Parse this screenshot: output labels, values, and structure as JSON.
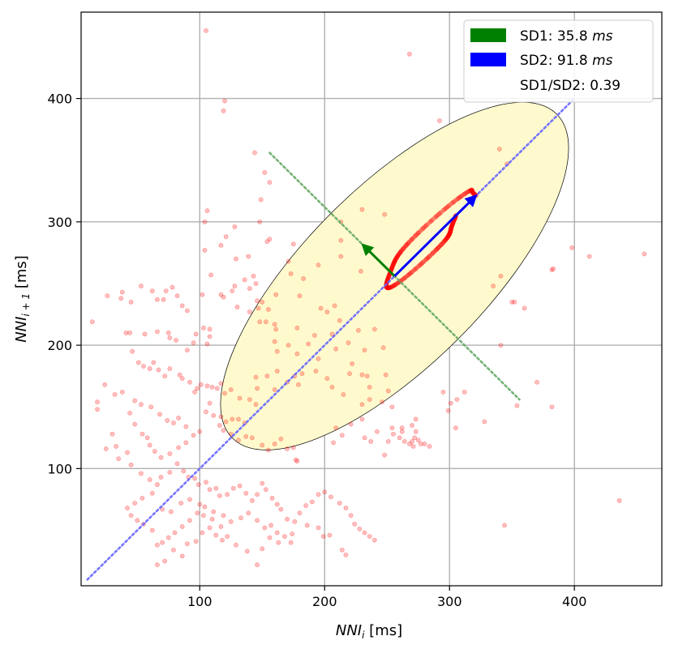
{
  "chart_data": {
    "type": "scatter",
    "title": "",
    "xlabel": {
      "base": "NNI",
      "sub": "i",
      "unit": " [ms]"
    },
    "ylabel": {
      "base": "NNI",
      "sub": "i + 1",
      "unit": " [ms]"
    },
    "xlim": [
      5,
      470
    ],
    "ylim": [
      5,
      470
    ],
    "xticks": [
      100,
      200,
      300,
      400
    ],
    "yticks": [
      100,
      200,
      300,
      400
    ],
    "xtick_labels": [
      "100",
      "200",
      "300",
      "400"
    ],
    "ytick_labels": [
      "100",
      "200",
      "300",
      "400"
    ],
    "grid": true,
    "legend_position": "top-right",
    "legend": [
      {
        "label": "SD1: 35.8 ",
        "unit": "ms",
        "color": "#008000",
        "swatch": true
      },
      {
        "label": "SD2: 91.8 ",
        "unit": "ms",
        "color": "#0000ff",
        "swatch": true
      },
      {
        "label": "SD1/SD2: 0.39",
        "unit": "",
        "color": "none",
        "swatch": false
      }
    ],
    "points_color": "#ff0000",
    "ellipse": {
      "center": [
        256,
        256
      ],
      "sd1": 35.8,
      "sd2": 91.8,
      "fill": "#fffacd",
      "edge": "#000000"
    },
    "identity_line": {
      "from": [
        10,
        10
      ],
      "to": [
        400,
        400
      ],
      "color": "#6666ff",
      "style": "dotted"
    },
    "perpendicular_line": {
      "from": [
        156,
        356
      ],
      "to": [
        356,
        156
      ],
      "color": "#66aa66",
      "style": "dotted"
    },
    "sd1_arrow": {
      "from": [
        256,
        256
      ],
      "to": [
        230.7,
        281.3
      ],
      "color": "#008000"
    },
    "sd2_arrow": {
      "from": [
        256,
        256
      ],
      "to": [
        320.9,
        320.9
      ],
      "color": "#0000ff"
    },
    "scatter_points": [
      [
        105,
        455
      ],
      [
        120,
        398
      ],
      [
        119,
        390
      ],
      [
        268,
        436
      ],
      [
        292,
        382
      ],
      [
        340,
        359
      ],
      [
        346,
        347
      ],
      [
        144,
        356
      ],
      [
        152,
        340
      ],
      [
        156,
        332
      ],
      [
        149,
        318
      ],
      [
        156,
        286
      ],
      [
        154,
        284
      ],
      [
        175,
        282
      ],
      [
        148,
        300
      ],
      [
        106,
        309
      ],
      [
        104,
        300
      ],
      [
        104,
        277
      ],
      [
        121,
        288
      ],
      [
        128,
        296
      ],
      [
        117,
        281
      ],
      [
        129,
        270
      ],
      [
        139,
        272
      ],
      [
        171,
        268
      ],
      [
        173,
        258
      ],
      [
        180,
        240
      ],
      [
        183,
        254
      ],
      [
        195,
        265
      ],
      [
        229,
        260
      ],
      [
        248,
        306
      ],
      [
        230,
        310
      ],
      [
        213,
        300
      ],
      [
        213,
        272
      ],
      [
        213,
        285
      ],
      [
        143,
        256
      ],
      [
        145,
        250
      ],
      [
        140,
        246
      ],
      [
        136,
        253
      ],
      [
        128,
        248
      ],
      [
        126,
        244
      ],
      [
        130,
        231
      ],
      [
        146,
        236
      ],
      [
        150,
        235
      ],
      [
        147,
        230
      ],
      [
        155,
        229
      ],
      [
        161,
        241
      ],
      [
        140,
        227
      ],
      [
        160,
        217
      ],
      [
        153,
        219
      ],
      [
        148,
        219
      ],
      [
        161,
        213
      ],
      [
        160,
        203
      ],
      [
        162,
        195
      ],
      [
        178,
        214
      ],
      [
        171,
        200
      ],
      [
        178,
        193
      ],
      [
        187,
        201
      ],
      [
        192,
        208
      ],
      [
        197,
        230
      ],
      [
        202,
        227
      ],
      [
        208,
        232
      ],
      [
        212,
        220
      ],
      [
        206,
        209
      ],
      [
        209,
        197
      ],
      [
        240,
        213
      ],
      [
        227,
        212
      ],
      [
        219,
        202
      ],
      [
        232,
        196
      ],
      [
        247,
        198
      ],
      [
        195,
        189
      ],
      [
        182,
        177
      ],
      [
        193,
        179
      ],
      [
        170,
        170
      ],
      [
        162,
        179
      ],
      [
        154,
        175
      ],
      [
        145,
        174
      ],
      [
        146,
        165
      ],
      [
        160,
        164
      ],
      [
        176,
        175
      ],
      [
        179,
        168
      ],
      [
        206,
        166
      ],
      [
        236,
        166
      ],
      [
        234,
        175
      ],
      [
        215,
        160
      ],
      [
        202,
        173
      ],
      [
        220,
        177
      ],
      [
        222,
        185
      ],
      [
        230,
        176
      ],
      [
        249,
        176
      ],
      [
        251,
        163
      ],
      [
        230,
        152
      ],
      [
        236,
        156
      ],
      [
        246,
        154
      ],
      [
        254,
        150
      ],
      [
        230,
        140
      ],
      [
        209,
        133
      ],
      [
        207,
        121
      ],
      [
        214,
        127
      ],
      [
        221,
        136
      ],
      [
        232,
        125
      ],
      [
        237,
        122
      ],
      [
        242,
        130
      ],
      [
        251,
        122
      ],
      [
        248,
        111
      ],
      [
        255,
        128
      ],
      [
        260,
        125
      ],
      [
        264,
        122
      ],
      [
        268,
        120
      ],
      [
        270,
        122
      ],
      [
        272,
        125
      ],
      [
        262,
        130
      ],
      [
        262,
        133
      ],
      [
        254,
        133
      ],
      [
        270,
        135
      ],
      [
        273,
        140
      ],
      [
        273,
        130
      ],
      [
        275,
        123
      ],
      [
        277,
        120
      ],
      [
        271,
        118
      ],
      [
        280,
        120
      ],
      [
        284,
        118
      ],
      [
        295,
        162
      ],
      [
        299,
        147
      ],
      [
        301,
        153
      ],
      [
        305,
        133
      ],
      [
        306,
        156
      ],
      [
        312,
        162
      ],
      [
        328,
        138
      ],
      [
        344,
        54
      ],
      [
        354,
        151
      ],
      [
        370,
        170
      ],
      [
        382,
        150
      ],
      [
        335,
        248
      ],
      [
        350,
        235
      ],
      [
        352,
        235
      ],
      [
        360,
        230
      ],
      [
        398,
        279
      ],
      [
        412,
        272
      ],
      [
        456,
        274
      ],
      [
        436,
        74
      ],
      [
        383,
        262
      ],
      [
        341,
        200
      ],
      [
        382,
        261
      ],
      [
        341,
        256
      ],
      [
        14,
        219
      ],
      [
        18,
        154
      ],
      [
        18,
        148
      ],
      [
        24,
        168
      ],
      [
        32,
        160
      ],
      [
        38,
        162
      ],
      [
        26,
        240
      ],
      [
        37,
        238
      ],
      [
        38,
        243
      ],
      [
        45,
        235
      ],
      [
        53,
        248
      ],
      [
        62,
        244
      ],
      [
        66,
        237
      ],
      [
        71,
        237
      ],
      [
        73,
        244
      ],
      [
        78,
        247
      ],
      [
        82,
        240
      ],
      [
        86,
        232
      ],
      [
        90,
        228
      ],
      [
        102,
        241
      ],
      [
        109,
        257
      ],
      [
        119,
        239
      ],
      [
        117,
        241
      ],
      [
        41,
        210
      ],
      [
        44,
        210
      ],
      [
        56,
        209
      ],
      [
        66,
        211
      ],
      [
        75,
        210
      ],
      [
        76,
        206
      ],
      [
        81,
        204
      ],
      [
        90,
        196
      ],
      [
        95,
        202
      ],
      [
        97,
        209
      ],
      [
        103,
        214
      ],
      [
        108,
        213
      ],
      [
        108,
        207
      ],
      [
        106,
        201
      ],
      [
        46,
        195
      ],
      [
        51,
        186
      ],
      [
        55,
        183
      ],
      [
        60,
        181
      ],
      [
        63,
        186
      ],
      [
        67,
        180
      ],
      [
        72,
        175
      ],
      [
        76,
        181
      ],
      [
        84,
        176
      ],
      [
        86,
        173
      ],
      [
        92,
        170
      ],
      [
        96,
        162
      ],
      [
        98,
        165
      ],
      [
        101,
        168
      ],
      [
        106,
        167
      ],
      [
        110,
        166
      ],
      [
        114,
        165
      ],
      [
        117,
        169
      ],
      [
        120,
        161
      ],
      [
        125,
        164
      ],
      [
        132,
        157
      ],
      [
        140,
        156
      ],
      [
        145,
        152
      ],
      [
        108,
        153
      ],
      [
        105,
        146
      ],
      [
        111,
        143
      ],
      [
        117,
        142
      ],
      [
        121,
        138
      ],
      [
        126,
        140
      ],
      [
        131,
        140
      ],
      [
        136,
        137
      ],
      [
        116,
        135
      ],
      [
        119,
        131
      ],
      [
        125,
        128
      ],
      [
        131,
        123
      ],
      [
        137,
        126
      ],
      [
        142,
        125
      ],
      [
        150,
        119
      ],
      [
        155,
        115
      ],
      [
        160,
        120
      ],
      [
        165,
        124
      ],
      [
        170,
        116
      ],
      [
        175,
        117
      ],
      [
        178,
        106
      ],
      [
        177,
        107
      ],
      [
        100,
        130
      ],
      [
        95,
        127
      ],
      [
        89,
        121
      ],
      [
        83,
        117
      ],
      [
        76,
        112
      ],
      [
        69,
        109
      ],
      [
        64,
        114
      ],
      [
        60,
        119
      ],
      [
        58,
        125
      ],
      [
        54,
        128
      ],
      [
        48,
        136
      ],
      [
        44,
        145
      ],
      [
        48,
        155
      ],
      [
        53,
        152
      ],
      [
        61,
        150
      ],
      [
        68,
        144
      ],
      [
        74,
        139
      ],
      [
        79,
        137
      ],
      [
        83,
        141
      ],
      [
        89,
        134
      ],
      [
        35,
        108
      ],
      [
        33,
        118
      ],
      [
        25,
        116
      ],
      [
        30,
        128
      ],
      [
        42,
        113
      ],
      [
        45,
        103
      ],
      [
        53,
        96
      ],
      [
        60,
        91
      ],
      [
        66,
        87
      ],
      [
        69,
        93
      ],
      [
        76,
        97
      ],
      [
        82,
        104
      ],
      [
        87,
        98
      ],
      [
        91,
        93
      ],
      [
        96,
        92
      ],
      [
        99,
        87
      ],
      [
        105,
        89
      ],
      [
        108,
        83
      ],
      [
        113,
        84
      ],
      [
        116,
        78
      ],
      [
        122,
        79
      ],
      [
        127,
        84
      ],
      [
        132,
        86
      ],
      [
        137,
        80
      ],
      [
        142,
        74
      ],
      [
        146,
        79
      ],
      [
        150,
        88
      ],
      [
        153,
        83
      ],
      [
        158,
        76
      ],
      [
        162,
        71
      ],
      [
        165,
        67
      ],
      [
        170,
        59
      ],
      [
        176,
        57
      ],
      [
        180,
        64
      ],
      [
        185,
        70
      ],
      [
        190,
        73
      ],
      [
        195,
        79
      ],
      [
        200,
        81
      ],
      [
        205,
        77
      ],
      [
        212,
        72
      ],
      [
        217,
        68
      ],
      [
        221,
        62
      ],
      [
        224,
        55
      ],
      [
        228,
        51
      ],
      [
        232,
        48
      ],
      [
        236,
        45
      ],
      [
        240,
        42
      ],
      [
        204,
        46
      ],
      [
        199,
        45
      ],
      [
        214,
        34
      ],
      [
        217,
        30
      ],
      [
        195,
        52
      ],
      [
        186,
        54
      ],
      [
        174,
        47
      ],
      [
        163,
        40
      ],
      [
        156,
        44
      ],
      [
        150,
        35
      ],
      [
        146,
        22
      ],
      [
        138,
        33
      ],
      [
        129,
        38
      ],
      [
        122,
        45
      ],
      [
        117,
        53
      ],
      [
        110,
        59
      ],
      [
        103,
        62
      ],
      [
        98,
        64
      ],
      [
        92,
        58
      ],
      [
        86,
        53
      ],
      [
        80,
        48
      ],
      [
        75,
        44
      ],
      [
        70,
        40
      ],
      [
        66,
        38
      ],
      [
        62,
        50
      ],
      [
        55,
        55
      ],
      [
        50,
        58
      ],
      [
        45,
        62
      ],
      [
        42,
        68
      ],
      [
        48,
        72
      ],
      [
        54,
        76
      ],
      [
        62,
        80
      ],
      [
        70,
        67
      ],
      [
        77,
        65
      ],
      [
        85,
        72
      ],
      [
        92,
        75
      ],
      [
        100,
        71
      ],
      [
        104,
        69
      ],
      [
        111,
        65
      ],
      [
        119,
        62
      ],
      [
        125,
        57
      ],
      [
        133,
        60
      ],
      [
        139,
        64
      ],
      [
        146,
        58
      ],
      [
        152,
        52
      ],
      [
        157,
        54
      ],
      [
        162,
        48
      ],
      [
        168,
        45
      ],
      [
        173,
        40
      ],
      [
        66,
        22
      ],
      [
        72,
        25
      ],
      [
        79,
        34
      ],
      [
        86,
        29
      ],
      [
        90,
        39
      ],
      [
        97,
        41
      ],
      [
        102,
        48
      ],
      [
        108,
        52
      ],
      [
        113,
        46
      ],
      [
        118,
        42
      ]
    ]
  }
}
